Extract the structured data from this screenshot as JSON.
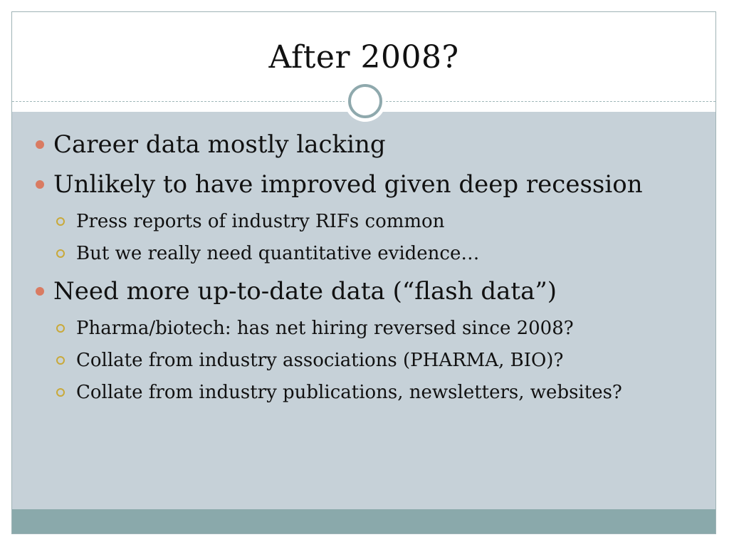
{
  "slide": {
    "title": "After 2008?",
    "bullets": [
      {
        "text": "Career data mostly lacking",
        "subitems": []
      },
      {
        "text": "Unlikely to have improved given deep recession",
        "subitems": [
          "Press reports of industry RIFs common",
          "But we really need quantitative evidence…"
        ]
      },
      {
        "text": "Need more up-to-date data (“flash data”)",
        "subitems": [
          "Pharma/biotech: has net hiring reversed since 2008?",
          "Collate from industry associations (PHARMA, BIO)?",
          "Collate from industry publications, newsletters, websites?"
        ]
      }
    ]
  },
  "colors": {
    "content_background": "#c6d1d8",
    "footer_band": "#8aa9ab",
    "bullet_dot": "#d97b62",
    "sub_bullet_ring": "#c9a93a"
  }
}
